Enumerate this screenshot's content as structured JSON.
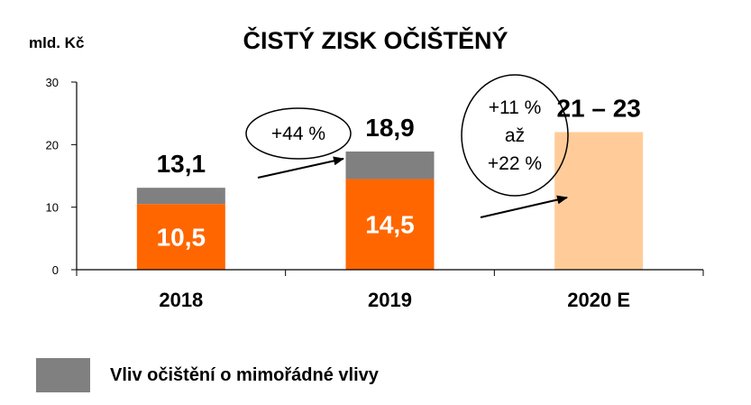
{
  "chart_data": {
    "type": "bar",
    "title": "ČISTÝ ZISK OČIŠTĚNÝ",
    "unit_label": "mld. Kč",
    "ylim": [
      0,
      30
    ],
    "yticks": [
      "0",
      "10",
      "20",
      "30"
    ],
    "categories": [
      "2018",
      "2019",
      "2020 E"
    ],
    "series": [
      {
        "name": "",
        "color": "#FF6600",
        "values": [
          10.5,
          14.5,
          null
        ]
      },
      {
        "name": "Vliv očištění o mimořádné vlivy",
        "color": "#808080",
        "values": [
          2.6,
          4.4,
          null
        ]
      },
      {
        "name": "",
        "color": "#FFCC99",
        "values": [
          null,
          null,
          22
        ]
      }
    ],
    "inner_labels": [
      "10,5",
      "14,5",
      ""
    ],
    "total_labels": [
      "13,1",
      "18,9",
      "21 – 23"
    ],
    "growth_annotations": [
      {
        "lines": [
          "+44 %"
        ]
      },
      {
        "lines": [
          "+11 %",
          "až",
          "+22 %"
        ]
      }
    ],
    "legend": {
      "label": "Vliv očištění o mimořádné vlivy",
      "color": "#808080"
    }
  }
}
